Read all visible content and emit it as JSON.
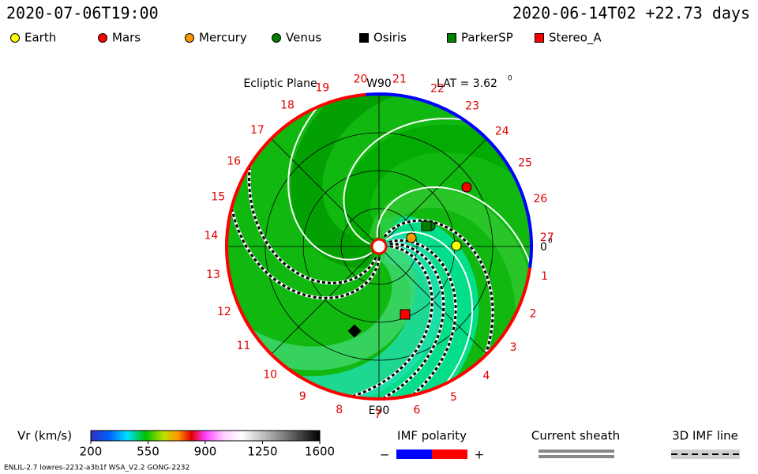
{
  "header": {
    "model_time": "2020-07-06T19:00",
    "run_time": "2020-06-14T02 +22.73 days"
  },
  "bodies": [
    {
      "name": "Earth",
      "color": "#ffff00"
    },
    {
      "name": "Mars",
      "color": "#ff0000"
    },
    {
      "name": "Mercury",
      "color": "#ff9900"
    },
    {
      "name": "Venus",
      "color": "#008000"
    },
    {
      "name": "Osiris",
      "color": "#000000"
    },
    {
      "name": "ParkerSP",
      "color": "#008000"
    },
    {
      "name": "Stereo_A",
      "color": "#ff0000"
    }
  ],
  "plot": {
    "title": "Ecliptic Plane",
    "top_label": "W90",
    "bottom_label": "E90",
    "lat": "LAT = 3.62",
    "lat_degree": "0",
    "right_label": "0",
    "right_degree": "0",
    "sectors": [
      "1",
      "2",
      "3",
      "4",
      "5",
      "6",
      "7",
      "8",
      "9",
      "10",
      "11",
      "12",
      "13",
      "14",
      "15",
      "16",
      "17",
      "18",
      "19",
      "20",
      "21",
      "22",
      "23",
      "24",
      "25",
      "26",
      "27"
    ]
  },
  "colorbar": {
    "label": "Vr (km/s)",
    "range": [
      200,
      1600
    ],
    "ticks": [
      200,
      550,
      900,
      1250,
      1600
    ]
  },
  "imf_polarity": {
    "title": "IMF polarity",
    "negative": "−",
    "positive": "+"
  },
  "current_sheath": {
    "title": "Current sheath"
  },
  "imf_line": {
    "title": "3D IMF line"
  },
  "footer": {
    "text": "ENLIL-2.7 lowres-2232-a3b1f WSA_V2.2 GONG-2232"
  }
}
